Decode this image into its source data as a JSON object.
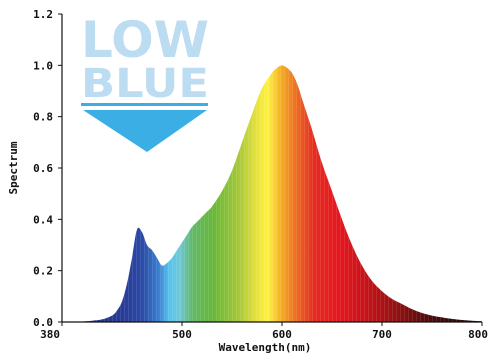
{
  "chart_data": {
    "type": "area",
    "title": "",
    "xlabel": "Wavelength(nm)",
    "ylabel": "Spectrum",
    "xlim": [
      380,
      800
    ],
    "ylim": [
      0,
      1.2
    ],
    "x_ticks": [
      {
        "value": 380,
        "label": "380"
      },
      {
        "value": 500,
        "label": "500"
      },
      {
        "value": 600,
        "label": "600"
      },
      {
        "value": 700,
        "label": "700"
      },
      {
        "value": 800,
        "label": "800"
      }
    ],
    "y_ticks": [
      {
        "value": 0.0,
        "label": "0.0"
      },
      {
        "value": 0.2,
        "label": "0.2"
      },
      {
        "value": 0.4,
        "label": "0.4"
      },
      {
        "value": 0.6,
        "label": "0.6"
      },
      {
        "value": 0.8,
        "label": "0.8"
      },
      {
        "value": 1.0,
        "label": "1.0"
      },
      {
        "value": 1.2,
        "label": "1.2"
      }
    ],
    "grid": false,
    "fill": "spectral",
    "series": [
      {
        "x": [
          380,
          400,
          410,
          420,
          430,
          435,
          440,
          445,
          450,
          455,
          460,
          465,
          470,
          475,
          480,
          485,
          490,
          495,
          500,
          505,
          510,
          515,
          520,
          525,
          530,
          540,
          550,
          560,
          570,
          580,
          590,
          595,
          600,
          605,
          610,
          615,
          620,
          625,
          630,
          640,
          650,
          660,
          670,
          680,
          690,
          700,
          710,
          720,
          730,
          740,
          750,
          760,
          770,
          780,
          790,
          800
        ],
        "values": [
          0.0,
          0.002,
          0.005,
          0.01,
          0.025,
          0.045,
          0.08,
          0.15,
          0.25,
          0.36,
          0.35,
          0.3,
          0.28,
          0.25,
          0.22,
          0.23,
          0.25,
          0.28,
          0.31,
          0.34,
          0.37,
          0.39,
          0.41,
          0.43,
          0.45,
          0.51,
          0.59,
          0.7,
          0.81,
          0.91,
          0.97,
          0.99,
          1.0,
          0.99,
          0.97,
          0.93,
          0.87,
          0.81,
          0.75,
          0.62,
          0.51,
          0.4,
          0.3,
          0.22,
          0.16,
          0.12,
          0.09,
          0.07,
          0.05,
          0.035,
          0.025,
          0.018,
          0.012,
          0.008,
          0.005,
          0.003
        ]
      }
    ]
  },
  "logo": {
    "line1": "LOW",
    "line2": "BLUE",
    "text_color": "#bcdcf2",
    "accent_color": "#3aaee5"
  }
}
